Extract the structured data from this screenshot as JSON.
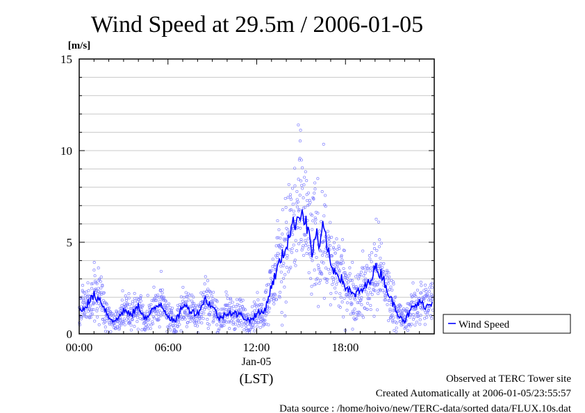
{
  "chart_data": {
    "type": "line",
    "title": "Wind Speed at 29.5m / 2006-01-05",
    "ylabel": "[m/s]",
    "xlabel": "(LST)",
    "x_date_label": "Jan-05",
    "ylim": [
      0,
      15
    ],
    "xlim": [
      "00:00",
      "24:00"
    ],
    "yticks": [
      "0",
      "5",
      "10",
      "15"
    ],
    "xticks": [
      "00:00",
      "06:00",
      "12:00",
      "18:00"
    ],
    "grid": true,
    "legend_position": "right",
    "series": [
      {
        "name": "Wind Speed",
        "color": "#0000ff",
        "scatter_color": "#8080ff",
        "x": [
          "00:00",
          "00:30",
          "01:00",
          "01:30",
          "02:00",
          "02:30",
          "03:00",
          "03:30",
          "04:00",
          "04:30",
          "05:00",
          "05:30",
          "06:00",
          "06:30",
          "07:00",
          "07:30",
          "08:00",
          "08:30",
          "09:00",
          "09:30",
          "10:00",
          "10:30",
          "11:00",
          "11:30",
          "12:00",
          "12:30",
          "13:00",
          "13:30",
          "14:00",
          "14:15",
          "14:30",
          "14:45",
          "15:00",
          "15:15",
          "15:30",
          "15:45",
          "16:00",
          "16:15",
          "16:30",
          "16:45",
          "17:00",
          "17:30",
          "18:00",
          "18:30",
          "19:00",
          "19:30",
          "20:00",
          "20:30",
          "21:00",
          "21:30",
          "22:00",
          "22:30",
          "23:00",
          "23:30",
          "23:55"
        ],
        "values": [
          1.2,
          1.6,
          2.1,
          1.8,
          0.9,
          0.7,
          1.3,
          1.0,
          1.5,
          0.8,
          1.3,
          1.7,
          1.0,
          0.6,
          1.6,
          1.3,
          1.1,
          1.9,
          1.5,
          0.8,
          1.2,
          1.1,
          1.0,
          0.7,
          1.1,
          1.2,
          2.6,
          3.8,
          4.8,
          5.6,
          6.0,
          6.3,
          6.8,
          6.2,
          5.6,
          4.3,
          5.6,
          4.6,
          5.9,
          4.9,
          3.7,
          3.3,
          2.6,
          2.1,
          2.3,
          2.7,
          3.6,
          3.2,
          2.0,
          1.2,
          0.7,
          1.4,
          1.7,
          1.5,
          1.8
        ]
      }
    ]
  },
  "footer": {
    "observed": "Observed at TERC Tower site",
    "created": "Created Automatically at 2006-01-05/23:55:57",
    "source": "Data source : /home/hoivo/new/TERC-data/sorted  data/FLUX.10s.dat"
  }
}
